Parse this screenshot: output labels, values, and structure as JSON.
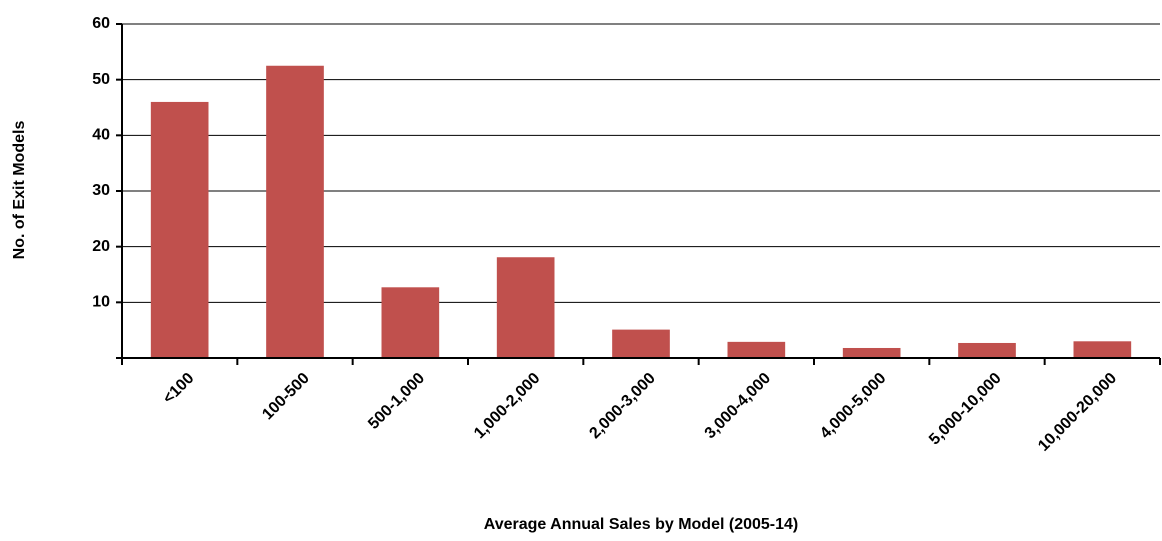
{
  "chart_data": {
    "type": "bar",
    "x_label": "Average Annual Sales by Model (2005-14)",
    "y_label": "No. of Exit Models",
    "categories": [
      "<100",
      "100-500",
      "500-1,000",
      "1,000-2,000",
      "2,000-3,000",
      "3,000-4,000",
      "4,000-5,000",
      "5,000-10,000",
      "10,000-20,000"
    ],
    "values": [
      46,
      52.5,
      12.7,
      18.1,
      5.1,
      2.9,
      1.8,
      2.7,
      3
    ],
    "color": "#c0504d",
    "ylim": [
      0,
      60
    ],
    "yticks": [
      10,
      20,
      30,
      40,
      50,
      60
    ],
    "grid": true
  }
}
